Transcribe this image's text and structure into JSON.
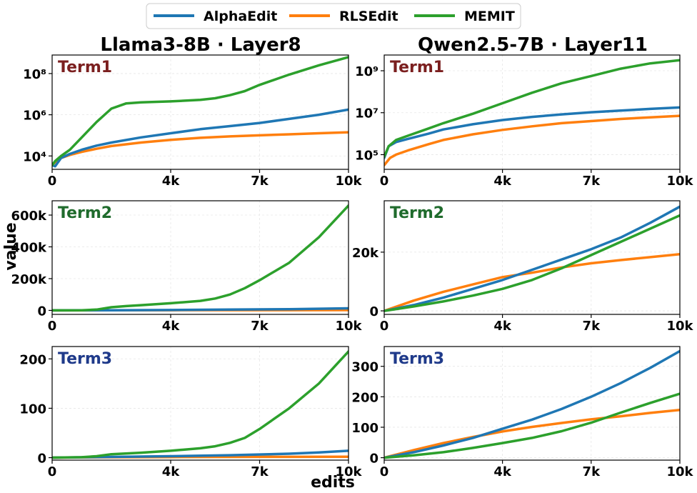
{
  "legend": {
    "items": [
      {
        "label": "AlphaEdit",
        "color": "#1f77b4"
      },
      {
        "label": "RLSEdit",
        "color": "#ff7f0e"
      },
      {
        "label": "MEMIT",
        "color": "#2ca02c"
      }
    ]
  },
  "columns": [
    {
      "title": "Llama3-8B · Layer8"
    },
    {
      "title": "Qwen2.5-7B · Layer11"
    }
  ],
  "ylabel": "value",
  "xlabel": "edits",
  "term_colors": {
    "Term1": "#7b1f1f",
    "Term2": "#1f6b2c",
    "Term3": "#1f3a8a"
  },
  "chart_data": [
    {
      "type": "line",
      "panel": "llama-term1",
      "title": "Term1",
      "yscale": "log",
      "xlim": [
        0,
        10000
      ],
      "ylim_log10": [
        3.35,
        8.9
      ],
      "xticks": [
        0,
        4000,
        7000,
        10000
      ],
      "xtick_labels": [
        "0",
        "4k",
        "7k",
        "10k"
      ],
      "yticks": [
        4,
        6,
        8
      ],
      "ytick_labels": [
        "10⁴",
        "10⁶",
        "10⁸"
      ],
      "ylabel": "value",
      "xlabel": "edits",
      "series": [
        {
          "name": "AlphaEdit",
          "x": [
            0,
            100,
            300,
            600,
            1000,
            1500,
            2000,
            3000,
            4000,
            5000,
            6000,
            7000,
            8000,
            9000,
            10000
          ],
          "y_log10": [
            3.55,
            3.5,
            3.9,
            4.1,
            4.3,
            4.5,
            4.65,
            4.9,
            5.1,
            5.3,
            5.45,
            5.6,
            5.8,
            6.0,
            6.25
          ]
        },
        {
          "name": "RLSEdit",
          "x": [
            0,
            100,
            300,
            600,
            1000,
            1500,
            2000,
            3000,
            4000,
            5000,
            6000,
            7000,
            8000,
            9000,
            10000
          ],
          "y_log10": [
            3.55,
            3.7,
            3.9,
            4.05,
            4.2,
            4.35,
            4.48,
            4.65,
            4.78,
            4.88,
            4.95,
            5.0,
            5.05,
            5.1,
            5.15
          ]
        },
        {
          "name": "MEMIT",
          "x": [
            0,
            100,
            300,
            600,
            1000,
            1500,
            2000,
            2500,
            3000,
            4000,
            5000,
            5500,
            6000,
            6500,
            7000,
            8000,
            9000,
            10000
          ],
          "y_log10": [
            3.55,
            3.75,
            4.0,
            4.3,
            4.9,
            5.65,
            6.3,
            6.55,
            6.6,
            6.65,
            6.72,
            6.8,
            6.95,
            7.15,
            7.45,
            7.95,
            8.4,
            8.8
          ]
        }
      ]
    },
    {
      "type": "line",
      "panel": "qwen-term1",
      "title": "Term1",
      "yscale": "log",
      "xlim": [
        0,
        10000
      ],
      "ylim_log10": [
        4.3,
        9.75
      ],
      "xticks": [
        0,
        4000,
        7000,
        10000
      ],
      "xtick_labels": [
        "0",
        "4k",
        "7k",
        "10k"
      ],
      "yticks": [
        5,
        7,
        9
      ],
      "ytick_labels": [
        "10⁵",
        "10⁷",
        "10⁹"
      ],
      "series": [
        {
          "name": "AlphaEdit",
          "x": [
            0,
            150,
            400,
            800,
            1500,
            2000,
            3000,
            4000,
            5000,
            6000,
            7000,
            8000,
            9000,
            10000
          ],
          "y_log10": [
            4.85,
            5.4,
            5.6,
            5.75,
            6.0,
            6.2,
            6.45,
            6.65,
            6.8,
            6.92,
            7.02,
            7.1,
            7.18,
            7.25
          ]
        },
        {
          "name": "RLSEdit",
          "x": [
            0,
            200,
            400,
            800,
            1500,
            2000,
            3000,
            4000,
            5000,
            6000,
            7000,
            8000,
            9000,
            10000
          ],
          "y_log10": [
            4.5,
            4.85,
            5.0,
            5.2,
            5.5,
            5.7,
            5.97,
            6.18,
            6.35,
            6.5,
            6.6,
            6.7,
            6.78,
            6.85
          ]
        },
        {
          "name": "MEMIT",
          "x": [
            0,
            150,
            400,
            800,
            1500,
            2000,
            3000,
            4000,
            5000,
            6000,
            7000,
            8000,
            9000,
            10000
          ],
          "y_log10": [
            4.9,
            5.4,
            5.7,
            5.9,
            6.25,
            6.5,
            6.95,
            7.45,
            7.95,
            8.4,
            8.75,
            9.1,
            9.35,
            9.5
          ]
        }
      ]
    },
    {
      "type": "line",
      "panel": "llama-term2",
      "title": "Term2",
      "yscale": "linear",
      "xlim": [
        0,
        10000
      ],
      "ylim": [
        -25000,
        690000
      ],
      "xticks": [
        0,
        4000,
        7000,
        10000
      ],
      "xtick_labels": [
        "0",
        "4k",
        "7k",
        "10k"
      ],
      "yticks": [
        0,
        200000,
        400000,
        600000
      ],
      "ytick_labels": [
        "0",
        "200k",
        "400k",
        "600k"
      ],
      "series": [
        {
          "name": "AlphaEdit",
          "x": [
            0,
            2000,
            4000,
            6000,
            8000,
            10000
          ],
          "y": [
            0,
            1000,
            2500,
            5000,
            8000,
            13000
          ]
        },
        {
          "name": "RLSEdit",
          "x": [
            0,
            2000,
            4000,
            6000,
            8000,
            10000
          ],
          "y": [
            0,
            600,
            1000,
            1400,
            1700,
            2000
          ]
        },
        {
          "name": "MEMIT",
          "x": [
            0,
            1000,
            1500,
            2000,
            2500,
            3000,
            4000,
            5000,
            5500,
            6000,
            6500,
            7000,
            8000,
            9000,
            10000
          ],
          "y": [
            0,
            1000,
            5000,
            20000,
            27000,
            33000,
            45000,
            60000,
            75000,
            100000,
            140000,
            190000,
            300000,
            460000,
            660000
          ]
        }
      ]
    },
    {
      "type": "line",
      "panel": "qwen-term2",
      "title": "Term2",
      "yscale": "linear",
      "xlim": [
        0,
        10000
      ],
      "ylim": [
        -1200,
        37500
      ],
      "xticks": [
        0,
        4000,
        7000,
        10000
      ],
      "xtick_labels": [
        "0",
        "4k",
        "7k",
        "10k"
      ],
      "yticks": [
        0,
        20000
      ],
      "ytick_labels": [
        "0",
        "20k"
      ],
      "series": [
        {
          "name": "AlphaEdit",
          "x": [
            0,
            1000,
            2000,
            3000,
            4000,
            5000,
            6000,
            7000,
            8000,
            9000,
            10000
          ],
          "y": [
            0,
            2000,
            4500,
            7500,
            10500,
            14000,
            17500,
            21000,
            25000,
            30000,
            35500
          ]
        },
        {
          "name": "RLSEdit",
          "x": [
            0,
            1000,
            2000,
            3000,
            4000,
            5000,
            6000,
            7000,
            8000,
            9000,
            10000
          ],
          "y": [
            0,
            3500,
            6500,
            9000,
            11500,
            13000,
            14800,
            16200,
            17300,
            18300,
            19300
          ]
        },
        {
          "name": "MEMIT",
          "x": [
            0,
            1000,
            2000,
            3000,
            4000,
            5000,
            6000,
            7000,
            8000,
            9000,
            10000
          ],
          "y": [
            0,
            1500,
            3200,
            5200,
            7500,
            10500,
            14500,
            19000,
            23500,
            28000,
            32500
          ]
        }
      ]
    },
    {
      "type": "line",
      "panel": "llama-term3",
      "title": "Term3",
      "yscale": "linear",
      "xlim": [
        0,
        10000
      ],
      "ylim": [
        -5,
        225
      ],
      "xticks": [
        0,
        4000,
        7000,
        10000
      ],
      "xtick_labels": [
        "0",
        "4k",
        "7k",
        "10k"
      ],
      "yticks": [
        0,
        100,
        200
      ],
      "ytick_labels": [
        "0",
        "100",
        "200"
      ],
      "series": [
        {
          "name": "AlphaEdit",
          "x": [
            0,
            2000,
            4000,
            6000,
            8000,
            9000,
            10000
          ],
          "y": [
            0,
            1.5,
            3,
            5,
            8,
            10.5,
            14
          ]
        },
        {
          "name": "RLSEdit",
          "x": [
            0,
            2000,
            4000,
            6000,
            8000,
            10000
          ],
          "y": [
            0,
            0.8,
            1.2,
            1.5,
            1.7,
            1.9
          ]
        },
        {
          "name": "MEMIT",
          "x": [
            0,
            1000,
            1500,
            2000,
            3000,
            4000,
            5000,
            5500,
            6000,
            6500,
            7000,
            8000,
            9000,
            10000
          ],
          "y": [
            0,
            1,
            3,
            7,
            10,
            14,
            19,
            23,
            30,
            40,
            58,
            100,
            150,
            215
          ]
        }
      ]
    },
    {
      "type": "line",
      "panel": "qwen-term3",
      "title": "Term3",
      "yscale": "linear",
      "xlim": [
        0,
        10000
      ],
      "ylim": [
        -8,
        365
      ],
      "xticks": [
        0,
        4000,
        7000,
        10000
      ],
      "xtick_labels": [
        "0",
        "4k",
        "7k",
        "10k"
      ],
      "yticks": [
        0,
        100,
        200,
        300
      ],
      "ytick_labels": [
        "0",
        "100",
        "200",
        "300"
      ],
      "series": [
        {
          "name": "AlphaEdit",
          "x": [
            0,
            1000,
            2000,
            3000,
            4000,
            5000,
            6000,
            7000,
            8000,
            9000,
            10000
          ],
          "y": [
            0,
            18,
            40,
            65,
            95,
            125,
            160,
            200,
            245,
            295,
            350
          ]
        },
        {
          "name": "RLSEdit",
          "x": [
            0,
            1000,
            2000,
            3000,
            4000,
            5000,
            6000,
            7000,
            8000,
            9000,
            10000
          ],
          "y": [
            0,
            25,
            48,
            68,
            86,
            101,
            114,
            126,
            136,
            147,
            157
          ]
        },
        {
          "name": "MEMIT",
          "x": [
            0,
            1000,
            2000,
            3000,
            4000,
            5000,
            6000,
            7000,
            8000,
            9000,
            10000
          ],
          "y": [
            0,
            8,
            18,
            32,
            48,
            65,
            87,
            115,
            148,
            180,
            210
          ]
        }
      ]
    }
  ]
}
